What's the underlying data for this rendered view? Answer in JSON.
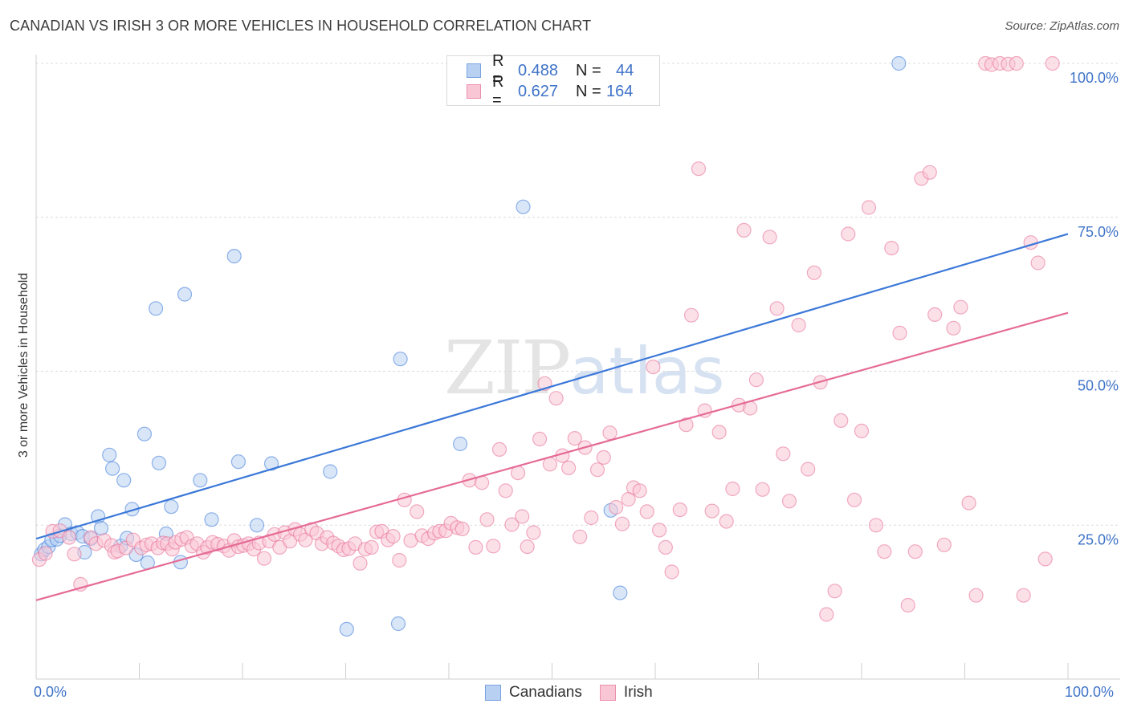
{
  "title": "CANADIAN VS IRISH 3 OR MORE VEHICLES IN HOUSEHOLD CORRELATION CHART",
  "source": "Source: ZipAtlas.com",
  "watermark": {
    "zip": "ZIP",
    "atlas": "atlas"
  },
  "legend": {
    "rows": [
      {
        "r_label": "R =",
        "r_value": "0.488",
        "n_label": "N =",
        "n_value": "44",
        "fill": "#b8d1f3",
        "stroke": "#7aa3e0"
      },
      {
        "r_label": "R =",
        "r_value": "0.627",
        "n_label": "N =",
        "n_value": "164",
        "fill": "#f9c6d6",
        "stroke": "#ec90ad"
      }
    ]
  },
  "bottom_legend": [
    {
      "label": "Canadians",
      "fill": "#b8d1f3",
      "stroke": "#7aa3e0"
    },
    {
      "label": "Irish",
      "fill": "#f9c6d6",
      "stroke": "#ec90ad"
    }
  ],
  "x_tick_labels": {
    "left": "0.0%",
    "right": "100.0%"
  },
  "chart_data": {
    "type": "scatter",
    "title": "CANADIAN VS IRISH 3 OR MORE VEHICLES IN HOUSEHOLD CORRELATION CHART",
    "xlabel": "",
    "ylabel": "3 or more Vehicles in Household",
    "xlim": [
      0,
      100
    ],
    "ylim": [
      0,
      100
    ],
    "y_ticks": [
      25,
      50,
      75,
      100
    ],
    "y_tick_labels": [
      "25.0%",
      "50.0%",
      "75.0%",
      "100.0%"
    ],
    "grid": true,
    "legend_position": "top-center",
    "series": [
      {
        "name": "Canadians",
        "color": "#3b78d8",
        "fill": "#b8d1f3",
        "trend": {
          "x": [
            0,
            100
          ],
          "y": [
            22.8,
            72.3
          ]
        },
        "points": [
          [
            0.5,
            20.3
          ],
          [
            0.8,
            21.0
          ],
          [
            1.2,
            21.5
          ],
          [
            1.5,
            22.6
          ],
          [
            2.0,
            22.7
          ],
          [
            2.3,
            23.3
          ],
          [
            2.8,
            25.1
          ],
          [
            3.4,
            23.6
          ],
          [
            4.0,
            23.8
          ],
          [
            4.5,
            23.2
          ],
          [
            4.7,
            20.6
          ],
          [
            5.3,
            22.8
          ],
          [
            6.0,
            26.4
          ],
          [
            6.3,
            24.5
          ],
          [
            7.1,
            36.4
          ],
          [
            7.4,
            34.2
          ],
          [
            8.2,
            21.6
          ],
          [
            8.5,
            32.3
          ],
          [
            8.8,
            22.9
          ],
          [
            9.3,
            27.6
          ],
          [
            9.7,
            20.2
          ],
          [
            10.5,
            39.8
          ],
          [
            10.8,
            18.9
          ],
          [
            11.6,
            60.2
          ],
          [
            11.9,
            35.1
          ],
          [
            12.6,
            23.6
          ],
          [
            13.1,
            28.0
          ],
          [
            14.0,
            19.0
          ],
          [
            14.4,
            62.5
          ],
          [
            15.9,
            32.3
          ],
          [
            17.0,
            25.9
          ],
          [
            19.2,
            68.7
          ],
          [
            19.6,
            35.3
          ],
          [
            21.4,
            25.0
          ],
          [
            22.8,
            35.0
          ],
          [
            28.5,
            33.7
          ],
          [
            30.1,
            8.1
          ],
          [
            35.1,
            9.0
          ],
          [
            35.3,
            52.0
          ],
          [
            41.1,
            38.2
          ],
          [
            47.2,
            76.7
          ],
          [
            55.7,
            27.4
          ],
          [
            56.6,
            14.0
          ],
          [
            83.6,
            100.0
          ]
        ]
      },
      {
        "name": "Irish",
        "color": "#e56b96",
        "fill": "#f9c6d6",
        "trend": {
          "x": [
            0,
            100
          ],
          "y": [
            12.8,
            59.5
          ]
        },
        "points": [
          [
            0.3,
            19.4
          ],
          [
            0.9,
            20.4
          ],
          [
            1.6,
            24.0
          ],
          [
            2.3,
            24.1
          ],
          [
            3.2,
            23.0
          ],
          [
            3.7,
            20.3
          ],
          [
            4.3,
            15.4
          ],
          [
            5.3,
            23.0
          ],
          [
            5.8,
            22.0
          ],
          [
            6.6,
            22.5
          ],
          [
            7.3,
            21.7
          ],
          [
            7.6,
            20.6
          ],
          [
            7.9,
            20.8
          ],
          [
            8.7,
            21.3
          ],
          [
            9.4,
            22.6
          ],
          [
            10.2,
            21.3
          ],
          [
            10.7,
            21.8
          ],
          [
            11.2,
            22.0
          ],
          [
            11.8,
            21.3
          ],
          [
            12.3,
            22.1
          ],
          [
            12.7,
            22.0
          ],
          [
            13.2,
            21.1
          ],
          [
            13.5,
            22.2
          ],
          [
            14.1,
            22.7
          ],
          [
            14.6,
            23.0
          ],
          [
            15.1,
            21.6
          ],
          [
            15.6,
            22.0
          ],
          [
            16.2,
            20.6
          ],
          [
            16.6,
            21.4
          ],
          [
            17.1,
            22.2
          ],
          [
            17.6,
            21.9
          ],
          [
            18.2,
            21.6
          ],
          [
            18.7,
            20.9
          ],
          [
            19.2,
            22.5
          ],
          [
            19.6,
            21.5
          ],
          [
            20.1,
            21.7
          ],
          [
            20.6,
            22.0
          ],
          [
            21.1,
            21.1
          ],
          [
            21.6,
            22.1
          ],
          [
            22.1,
            19.6
          ],
          [
            22.6,
            22.4
          ],
          [
            23.1,
            23.5
          ],
          [
            23.6,
            21.4
          ],
          [
            24.1,
            23.8
          ],
          [
            24.6,
            22.4
          ],
          [
            25.1,
            24.3
          ],
          [
            25.6,
            23.5
          ],
          [
            26.1,
            22.6
          ],
          [
            26.7,
            24.3
          ],
          [
            27.2,
            23.7
          ],
          [
            27.7,
            22.0
          ],
          [
            28.2,
            23.0
          ],
          [
            28.8,
            22.1
          ],
          [
            29.3,
            21.6
          ],
          [
            29.8,
            21.0
          ],
          [
            30.3,
            21.2
          ],
          [
            30.9,
            22.0
          ],
          [
            31.4,
            18.8
          ],
          [
            31.9,
            21.1
          ],
          [
            32.5,
            21.4
          ],
          [
            33.0,
            23.9
          ],
          [
            33.5,
            24.0
          ],
          [
            34.1,
            22.6
          ],
          [
            34.6,
            23.2
          ],
          [
            35.2,
            19.3
          ],
          [
            35.7,
            29.1
          ],
          [
            36.3,
            22.5
          ],
          [
            36.9,
            27.2
          ],
          [
            37.4,
            23.3
          ],
          [
            38.0,
            22.8
          ],
          [
            38.6,
            23.7
          ],
          [
            39.1,
            24.0
          ],
          [
            39.7,
            24.1
          ],
          [
            40.2,
            25.3
          ],
          [
            40.8,
            24.6
          ],
          [
            41.3,
            24.4
          ],
          [
            42.0,
            32.3
          ],
          [
            42.6,
            21.4
          ],
          [
            43.2,
            31.9
          ],
          [
            43.7,
            25.9
          ],
          [
            44.3,
            21.6
          ],
          [
            44.9,
            37.3
          ],
          [
            45.5,
            30.6
          ],
          [
            46.1,
            25.1
          ],
          [
            46.7,
            33.5
          ],
          [
            47.1,
            26.4
          ],
          [
            47.6,
            21.5
          ],
          [
            48.2,
            23.8
          ],
          [
            48.8,
            39.0
          ],
          [
            49.3,
            48.0
          ],
          [
            49.8,
            34.9
          ],
          [
            50.4,
            45.6
          ],
          [
            51.0,
            36.3
          ],
          [
            51.6,
            34.3
          ],
          [
            52.2,
            39.1
          ],
          [
            52.7,
            23.1
          ],
          [
            53.2,
            37.6
          ],
          [
            53.8,
            26.2
          ],
          [
            54.4,
            34.0
          ],
          [
            55.0,
            36.0
          ],
          [
            55.6,
            40.0
          ],
          [
            56.2,
            27.9
          ],
          [
            56.8,
            25.2
          ],
          [
            57.4,
            29.2
          ],
          [
            57.9,
            31.1
          ],
          [
            58.5,
            30.6
          ],
          [
            59.2,
            27.2
          ],
          [
            59.8,
            50.7
          ],
          [
            60.4,
            24.2
          ],
          [
            61.0,
            21.4
          ],
          [
            61.6,
            17.4
          ],
          [
            62.4,
            27.5
          ],
          [
            63.0,
            41.3
          ],
          [
            63.5,
            59.1
          ],
          [
            64.2,
            82.9
          ],
          [
            64.8,
            43.6
          ],
          [
            65.5,
            27.3
          ],
          [
            66.2,
            40.1
          ],
          [
            66.9,
            25.6
          ],
          [
            67.5,
            30.9
          ],
          [
            68.1,
            44.5
          ],
          [
            68.6,
            72.9
          ],
          [
            69.2,
            44.0
          ],
          [
            69.8,
            48.6
          ],
          [
            70.4,
            30.8
          ],
          [
            71.1,
            71.8
          ],
          [
            71.8,
            60.2
          ],
          [
            72.4,
            36.6
          ],
          [
            73.0,
            28.9
          ],
          [
            73.9,
            57.5
          ],
          [
            74.8,
            34.1
          ],
          [
            75.4,
            66.0
          ],
          [
            76.0,
            48.2
          ],
          [
            76.6,
            10.5
          ],
          [
            77.4,
            14.3
          ],
          [
            78.0,
            42.0
          ],
          [
            78.7,
            72.3
          ],
          [
            79.3,
            29.1
          ],
          [
            80.0,
            40.3
          ],
          [
            80.7,
            76.6
          ],
          [
            81.4,
            25.0
          ],
          [
            82.2,
            20.7
          ],
          [
            82.9,
            70.0
          ],
          [
            83.7,
            56.2
          ],
          [
            84.5,
            12.0
          ],
          [
            85.2,
            20.7
          ],
          [
            85.8,
            81.3
          ],
          [
            86.6,
            82.3
          ],
          [
            87.1,
            59.2
          ],
          [
            88.0,
            21.8
          ],
          [
            88.9,
            57.0
          ],
          [
            89.6,
            60.4
          ],
          [
            90.4,
            28.6
          ],
          [
            91.1,
            13.6
          ],
          [
            92.0,
            100.0
          ],
          [
            92.6,
            99.8
          ],
          [
            93.4,
            100.0
          ],
          [
            94.2,
            99.9
          ],
          [
            95.0,
            100.0
          ],
          [
            95.7,
            13.6
          ],
          [
            96.4,
            70.9
          ],
          [
            97.1,
            67.6
          ],
          [
            97.8,
            19.5
          ],
          [
            98.5,
            100.0
          ]
        ]
      }
    ]
  }
}
